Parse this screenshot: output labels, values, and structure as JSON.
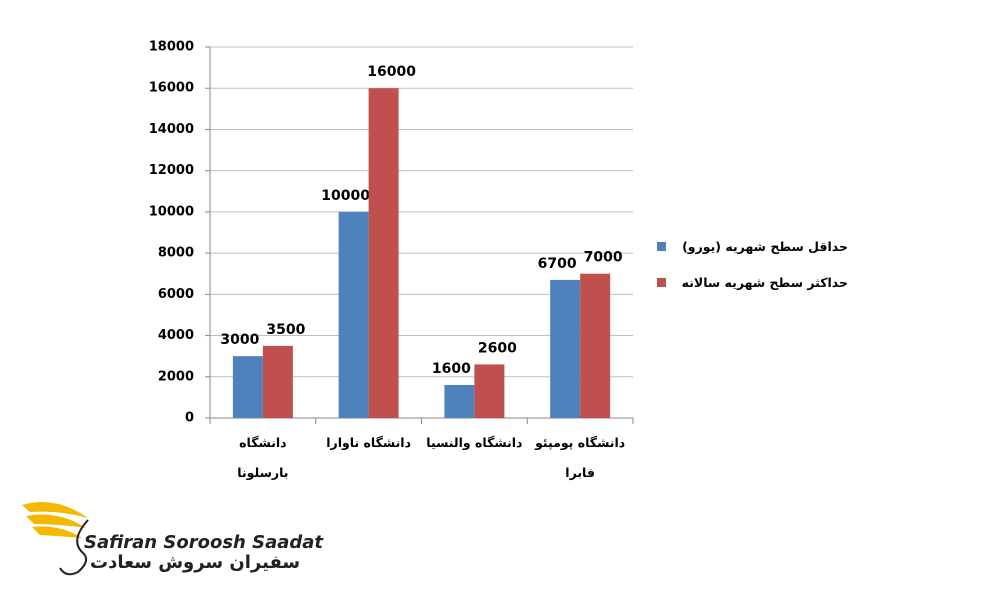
{
  "chart_data": {
    "type": "bar",
    "categories": [
      "دانشگاه بارسلونا",
      "دانشگاه ناوارا",
      "دانشگاه والنسیا",
      "دانشگاه پومپئو فابرا"
    ],
    "series": [
      {
        "name": "حداقل سطح شهریه (یورو)",
        "color": "#4f81bd",
        "values": [
          3000,
          10000,
          1600,
          6700
        ]
      },
      {
        "name": "حداکثر سطح شهریه سالانه",
        "color": "#c0504d",
        "values": [
          3500,
          16000,
          2600,
          7000
        ]
      }
    ],
    "ylim": [
      0,
      18000
    ],
    "yticks": [
      0,
      2000,
      4000,
      6000,
      8000,
      10000,
      12000,
      14000,
      16000,
      18000
    ],
    "grid": true,
    "legend": "right"
  },
  "logo": {
    "latin": "Safiran Soroosh Saadat",
    "persian": "سفیران سروش سعادت"
  }
}
